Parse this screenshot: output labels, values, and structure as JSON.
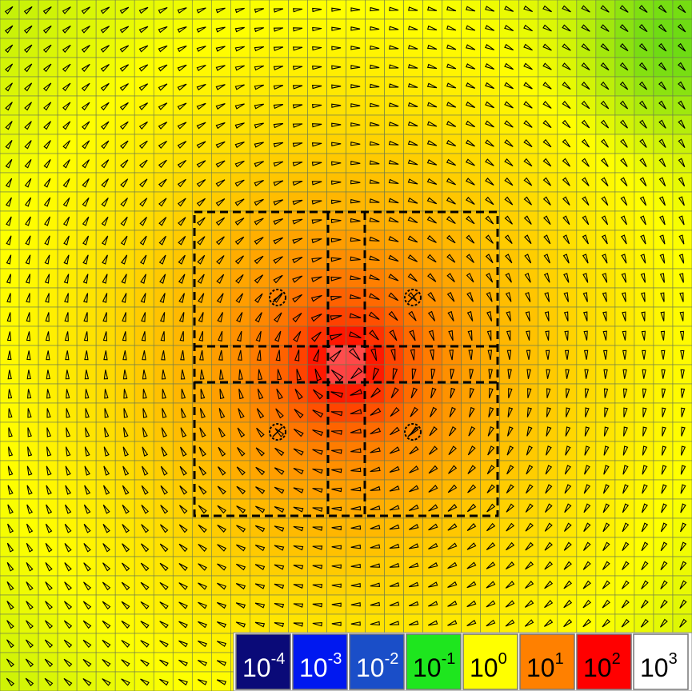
{
  "legend": {
    "entries": [
      {
        "base": "10",
        "exponent": "-4",
        "color": "#0a0a78",
        "text_color": "#ffffff"
      },
      {
        "base": "10",
        "exponent": "-3",
        "color": "#0018f0",
        "text_color": "#ffffff"
      },
      {
        "base": "10",
        "exponent": "-2",
        "color": "#1a4ec8",
        "text_color": "#ffffff"
      },
      {
        "base": "10",
        "exponent": "-1",
        "color": "#1ee61e",
        "text_color": "#000000"
      },
      {
        "base": "10",
        "exponent": "0",
        "color": "#ffff00",
        "text_color": "#000000"
      },
      {
        "base": "10",
        "exponent": "1",
        "color": "#ff8000",
        "text_color": "#000000"
      },
      {
        "base": "10",
        "exponent": "2",
        "color": "#ff0000",
        "text_color": "#000000"
      },
      {
        "base": "10",
        "exponent": "3",
        "color": "#ffffff",
        "text_color": "#000000"
      }
    ]
  }
}
